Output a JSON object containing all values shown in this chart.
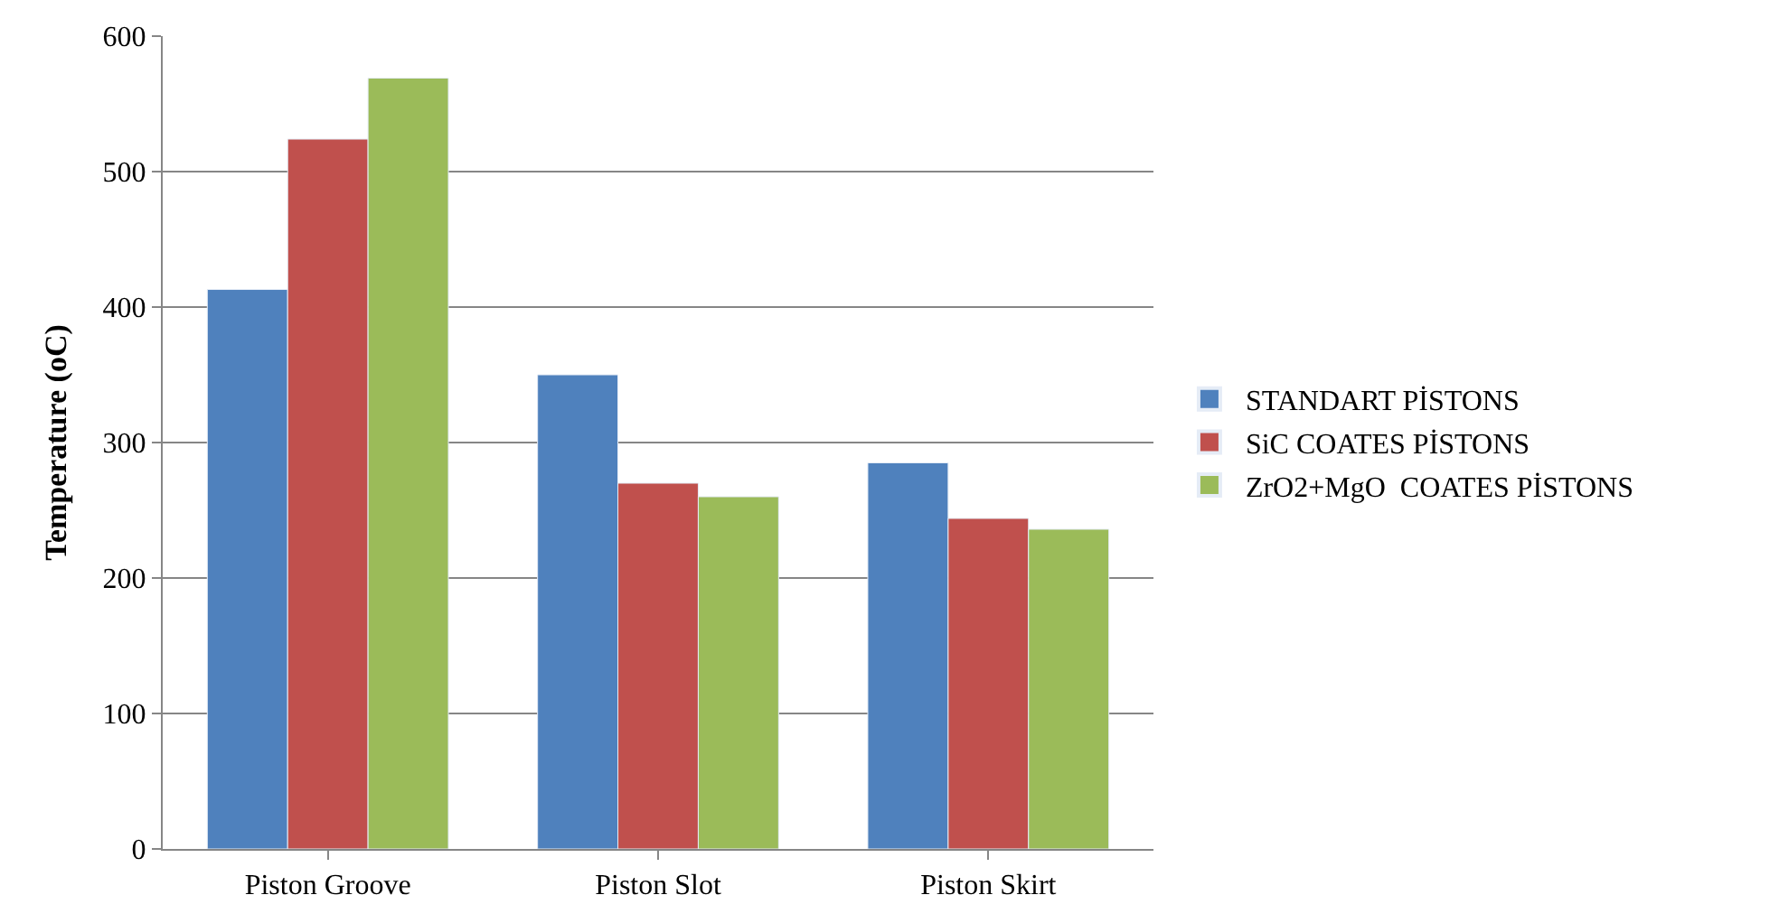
{
  "chart_data": {
    "type": "bar",
    "ylabel": "Temperature (oC)",
    "categories": [
      "Piston Groove",
      "Piston Slot",
      "Piston Skirt"
    ],
    "series": [
      {
        "name": "STANDART PİSTONS",
        "color": "#4f81bd",
        "values": [
          413,
          350,
          285
        ]
      },
      {
        "name": "SiC COATES PİSTONS",
        "color": "#c0504d",
        "values": [
          524,
          270,
          244
        ]
      },
      {
        "name": "ZrO2+MgO  COATES PİSTONS",
        "color": "#9bbb59",
        "values": [
          569,
          260,
          236
        ]
      }
    ],
    "ylim": [
      0,
      600
    ],
    "yticks": [
      0,
      100,
      200,
      300,
      400,
      500,
      600
    ],
    "grid": "y",
    "legend": "right"
  }
}
